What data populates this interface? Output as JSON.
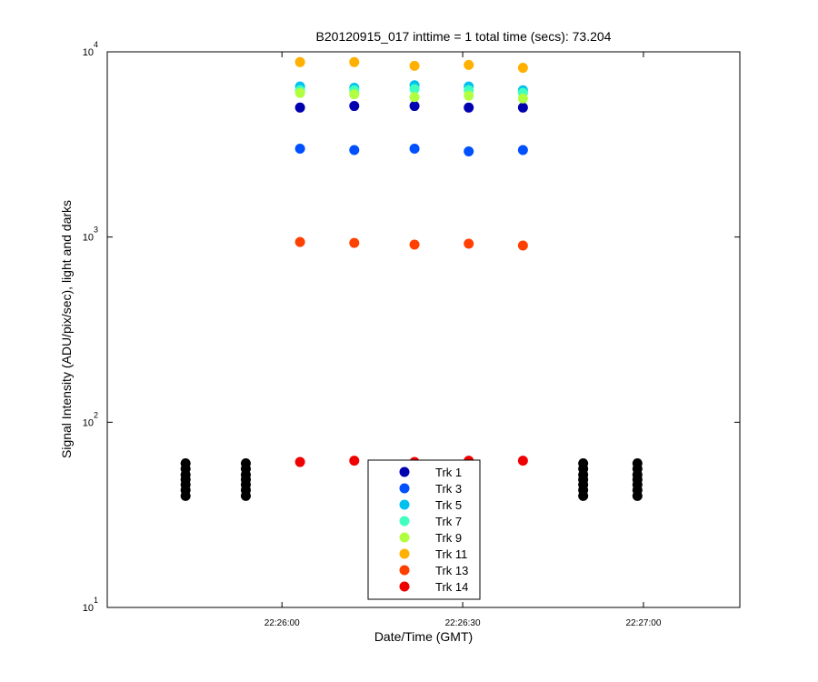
{
  "chart_data": {
    "type": "scatter",
    "title": "B20120915_017 inttime = 1 total time (secs): 73.204",
    "x_label": "Date/Time (GMT)",
    "y_label": "Signal Intensity (ADU/pix/sec), light and darks",
    "xlim": [
      "22:25:31",
      "22:27:16"
    ],
    "xticks": [
      "22:26:00",
      "22:26:30",
      "22:27:00"
    ],
    "ylim": [
      10,
      10000
    ],
    "y_scale": "log",
    "yticks": [
      {
        "value": 10,
        "label": "10^1"
      },
      {
        "value": 100,
        "label": "10^2"
      },
      {
        "value": 1000,
        "label": "10^3"
      },
      {
        "value": 10000,
        "label": "10^4"
      }
    ],
    "grid": false,
    "legend_location": "south",
    "series": [
      {
        "color": "#000000",
        "x": [
          "22:25:44",
          "22:25:44",
          "22:25:44",
          "22:25:44",
          "22:25:44",
          "22:25:44",
          "22:25:44",
          "22:25:54",
          "22:25:54",
          "22:25:54",
          "22:25:54",
          "22:25:54",
          "22:25:54",
          "22:25:54",
          "22:26:50",
          "22:26:50",
          "22:26:50",
          "22:26:50",
          "22:26:50",
          "22:26:50",
          "22:26:50",
          "22:26:59",
          "22:26:59",
          "22:26:59",
          "22:26:59",
          "22:26:59",
          "22:26:59",
          "22:26:59"
        ],
        "values": [
          40,
          43,
          46,
          49,
          52,
          56,
          60,
          40,
          43,
          46,
          49,
          52,
          56,
          60,
          40,
          43,
          46,
          49,
          52,
          56,
          60,
          40,
          43,
          46,
          49,
          52,
          56,
          60
        ]
      },
      {
        "name": "Trk 1",
        "color": "#0000b0",
        "x": [
          "22:26:03",
          "22:26:12",
          "22:26:22",
          "22:26:31",
          "22:26:40"
        ],
        "values": [
          5000,
          5100,
          5100,
          5000,
          5000
        ]
      },
      {
        "name": "Trk 3",
        "color": "#0050ff",
        "x": [
          "22:26:03",
          "22:26:12",
          "22:26:22",
          "22:26:31",
          "22:26:40"
        ],
        "values": [
          3000,
          2950,
          3000,
          2900,
          2950
        ]
      },
      {
        "name": "Trk 5",
        "color": "#00c0f0",
        "x": [
          "22:26:03",
          "22:26:12",
          "22:26:22",
          "22:26:31",
          "22:26:40"
        ],
        "values": [
          6500,
          6400,
          6600,
          6500,
          6200
        ]
      },
      {
        "name": "Trk 7",
        "color": "#40ffc0",
        "x": [
          "22:26:03",
          "22:26:12",
          "22:26:22",
          "22:26:31",
          "22:26:40"
        ],
        "values": [
          6200,
          6200,
          6300,
          6200,
          6000
        ]
      },
      {
        "name": "Trk 9",
        "color": "#b0ff40",
        "x": [
          "22:26:03",
          "22:26:12",
          "22:26:22",
          "22:26:31",
          "22:26:40"
        ],
        "values": [
          6000,
          5900,
          5700,
          5800,
          5600
        ]
      },
      {
        "name": "Trk 11",
        "color": "#ffb000",
        "x": [
          "22:26:03",
          "22:26:12",
          "22:26:22",
          "22:26:31",
          "22:26:40"
        ],
        "values": [
          8800,
          8800,
          8400,
          8500,
          8200
        ]
      },
      {
        "name": "Trk 13",
        "color": "#ff4000",
        "x": [
          "22:26:03",
          "22:26:12",
          "22:26:22",
          "22:26:31",
          "22:26:40"
        ],
        "values": [
          940,
          930,
          910,
          920,
          900
        ]
      },
      {
        "name": "Trk 14",
        "color": "#f00000",
        "x": [
          "22:26:03",
          "22:26:12",
          "22:26:22",
          "22:26:31",
          "22:26:40"
        ],
        "values": [
          61,
          62,
          61,
          62,
          62
        ]
      }
    ]
  }
}
